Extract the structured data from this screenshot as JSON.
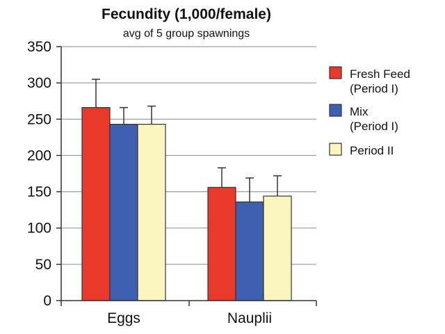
{
  "chart_data": {
    "type": "bar",
    "title": "Fecundity (1,000/female)",
    "subtitle": "avg of 5 group spawnings",
    "xlabel": "",
    "ylabel": "",
    "ylim": [
      0,
      350
    ],
    "yticks": [
      "0",
      "50",
      "100",
      "150",
      "200",
      "250",
      "300",
      "350"
    ],
    "grid": true,
    "legend_position": "right",
    "categories": [
      "Eggs",
      "Nauplii"
    ],
    "series": [
      {
        "name_line1": "Fresh Feed",
        "name_line2": "(Period I)",
        "color": "#e8392a",
        "values": [
          266,
          156
        ],
        "error_top": [
          305,
          183
        ]
      },
      {
        "name_line1": "Mix",
        "name_line2": "(Period I)",
        "color": "#3f5fb0",
        "values": [
          243,
          136
        ],
        "error_top": [
          266,
          169
        ]
      },
      {
        "name_line1": "Period II",
        "name_line2": "",
        "color": "#fbf5c0",
        "values": [
          243,
          144
        ],
        "error_top": [
          268,
          172
        ]
      }
    ]
  }
}
